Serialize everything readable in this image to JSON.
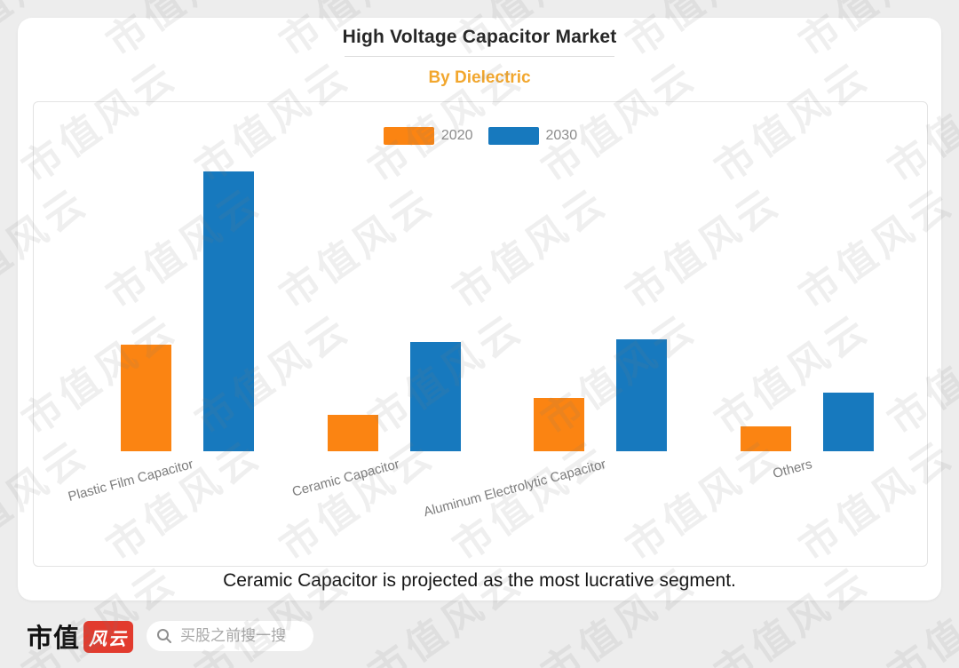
{
  "page": {
    "background": "#ededed"
  },
  "watermark": {
    "text": "市值风云"
  },
  "chart_data": {
    "type": "bar",
    "title": "High Voltage Capacitor Market",
    "subtitle": "By Dielectric",
    "subtitle_color": "#F2A72E",
    "categories": [
      "Plastic Film Capacitor",
      "Ceramic Capacitor",
      "Aluminum Electrolytic Capacitor",
      "Others"
    ],
    "series": [
      {
        "name": "2020",
        "color": "#FB8412",
        "values": [
          38,
          13,
          19,
          9
        ]
      },
      {
        "name": "2030",
        "color": "#1779BE",
        "values": [
          100,
          39,
          40,
          21
        ]
      }
    ],
    "ylim": [
      0,
      105
    ],
    "grid": false,
    "y_axis_shown": false,
    "legend_position": "top-center",
    "annotation": "Ceramic Capacitor is projected as the most lucrative segment."
  },
  "footer": {
    "logo_text": "市值",
    "logo_badge_text": "风云",
    "logo_badge_color": "#E23B2E",
    "search_placeholder": "买股之前搜一搜"
  }
}
